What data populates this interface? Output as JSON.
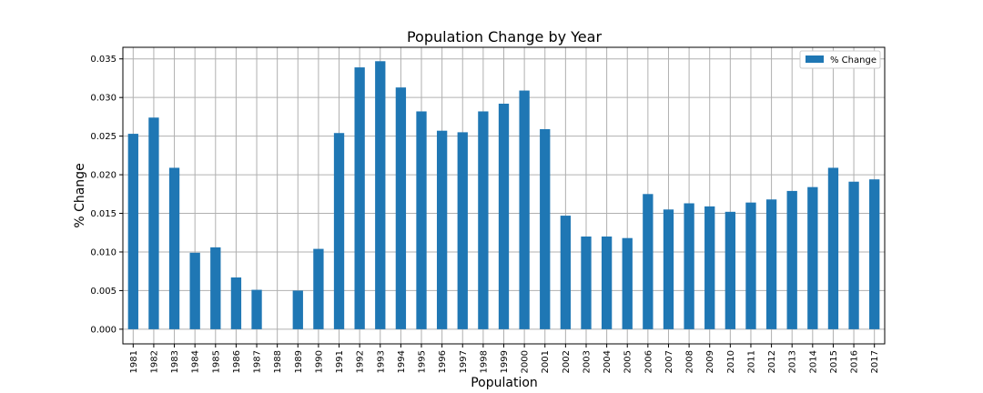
{
  "chart_data": {
    "type": "bar",
    "title": "Population Change by Year",
    "xlabel": "Population",
    "ylabel": "% Change",
    "ylim": [
      -0.0019,
      0.0365
    ],
    "yticks": [
      0.0,
      0.005,
      0.01,
      0.015,
      0.02,
      0.025,
      0.03,
      0.035
    ],
    "ytick_labels": [
      "0.000",
      "0.005",
      "0.010",
      "0.015",
      "0.020",
      "0.025",
      "0.030",
      "0.035"
    ],
    "grid": true,
    "legend_position": "top-right",
    "bar_color": "#1f77b4",
    "categories": [
      "1981",
      "1982",
      "1983",
      "1984",
      "1985",
      "1986",
      "1987",
      "1988",
      "1989",
      "1990",
      "1991",
      "1992",
      "1993",
      "1994",
      "1995",
      "1996",
      "1997",
      "1998",
      "1999",
      "2000",
      "2001",
      "2002",
      "2003",
      "2004",
      "2005",
      "2006",
      "2007",
      "2008",
      "2009",
      "2010",
      "2011",
      "2012",
      "2013",
      "2014",
      "2015",
      "2016",
      "2017"
    ],
    "series": [
      {
        "name": "% Change",
        "values": [
          0.0253,
          0.0274,
          0.0209,
          0.0099,
          0.0106,
          0.0067,
          0.0051,
          0.0,
          0.005,
          0.0104,
          0.0254,
          0.0339,
          0.0347,
          0.0313,
          0.0282,
          0.0257,
          0.0255,
          0.0282,
          0.0292,
          0.0309,
          0.0259,
          0.0147,
          0.012,
          0.012,
          0.0118,
          0.0175,
          0.0155,
          0.0163,
          0.0159,
          0.0152,
          0.0164,
          0.0168,
          0.0179,
          0.0184,
          0.0209,
          0.0191,
          0.0194
        ]
      }
    ]
  }
}
